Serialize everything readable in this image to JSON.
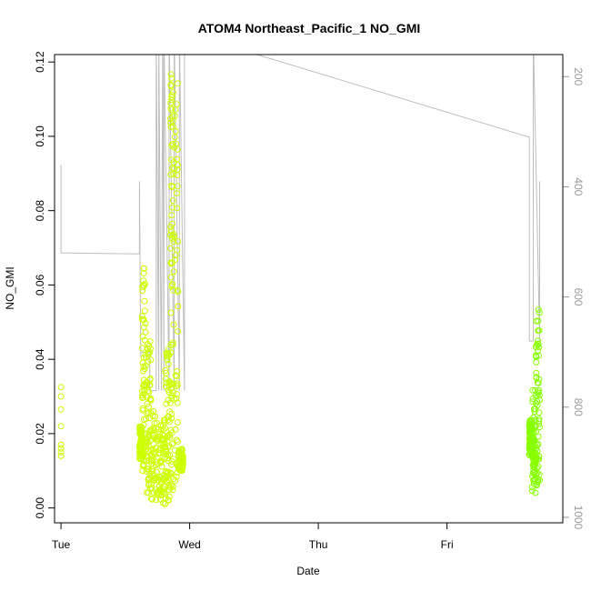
{
  "chart_data": {
    "type": "scatter",
    "title": "ATOM4 Northeast_Pacific_1 NO_GMI",
    "xlabel": "Date",
    "ylabel": "NO_GMI",
    "x_ticks": [
      "Tue",
      "Wed",
      "Thu",
      "Fri"
    ],
    "xlim_days": [
      -0.05,
      3.9
    ],
    "ylim": [
      -0.004,
      0.122
    ],
    "y_ticks": [
      0.0,
      0.02,
      0.04,
      0.06,
      0.08,
      0.1,
      0.12
    ],
    "y_tick_labels": [
      "0.00",
      "0.02",
      "0.04",
      "0.06",
      "0.08",
      "0.10",
      "0.12"
    ],
    "y2_label": "",
    "y2_ticks": [
      200,
      400,
      600,
      800,
      1000
    ],
    "y2_lim": [
      1010,
      160
    ],
    "y2_reversed": true,
    "grid": false,
    "colors": {
      "points_early": "#ccff00",
      "points_late": "#88ff00",
      "pressure_line": "#bdbdbd",
      "axis": "#000000"
    },
    "series": [
      {
        "role": "NO_GMI points",
        "clusters": [
          {
            "x": [
              0.0,
              0.0,
              0.0,
              0.0,
              0.0,
              0.0,
              0.0,
              0.0
            ],
            "y": [
              0.0325,
              0.03,
              0.0265,
              0.022,
              0.017,
              0.016,
              0.015,
              0.014
            ]
          },
          {
            "x_range": [
              0.61,
              0.99
            ],
            "y_range": [
              0.001,
              0.12
            ]
          },
          {
            "x_range": [
              3.64,
              3.73
            ],
            "y_range": [
              0.004,
              0.054
            ]
          }
        ]
      },
      {
        "role": "pressure line (right axis)",
        "x": [
          0.0,
          0.0,
          0.0,
          0.61,
          0.61,
          0.62,
          0.62,
          0.69,
          0.69,
          0.74,
          0.74,
          0.76,
          0.76,
          0.78,
          0.79,
          0.8,
          0.8,
          0.84,
          0.84,
          0.88,
          0.88,
          0.92,
          0.92,
          0.96,
          0.96,
          3.64,
          3.64,
          3.67,
          3.67,
          3.72,
          3.72
        ],
        "y": [
          520,
          360,
          520,
          522,
          390,
          710,
          700,
          700,
          770,
          770,
          120,
          770,
          120,
          770,
          120,
          770,
          120,
          770,
          120,
          770,
          120,
          770,
          120,
          770,
          120,
          310,
          680,
          680,
          120,
          680,
          390
        ]
      }
    ]
  }
}
